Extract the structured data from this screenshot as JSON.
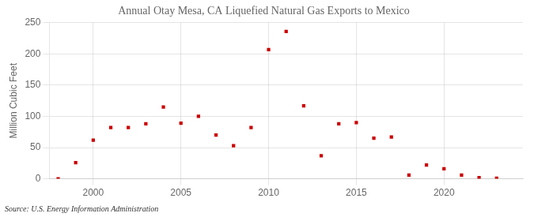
{
  "chart_data": {
    "type": "scatter",
    "title": "Annual Otay Mesa, CA Liquefied Natural Gas Exports to Mexico",
    "ylabel": "Million Cubic Feet",
    "annotation": "Source: U.S. Energy Information Administration",
    "x": [
      1998,
      1999,
      2000,
      2001,
      2002,
      2003,
      2004,
      2005,
      2006,
      2007,
      2008,
      2009,
      2010,
      2011,
      2012,
      2013,
      2014,
      2015,
      2016,
      2017,
      2018,
      2019,
      2020,
      2021,
      2022,
      2023
    ],
    "values": [
      0,
      26,
      62,
      82,
      82,
      88,
      115,
      89,
      100,
      70,
      53,
      82,
      207,
      236,
      117,
      37,
      88,
      90,
      65,
      67,
      6,
      22,
      16,
      6,
      2,
      1
    ],
    "color": "#cc0000",
    "marker": "square",
    "xlim": [
      1997.5,
      2024.5
    ],
    "ylim": [
      0,
      250
    ],
    "xticks": [
      2000,
      2005,
      2010,
      2015,
      2020
    ],
    "yticks": [
      0,
      50,
      100,
      150,
      200,
      250
    ],
    "grid": true
  }
}
